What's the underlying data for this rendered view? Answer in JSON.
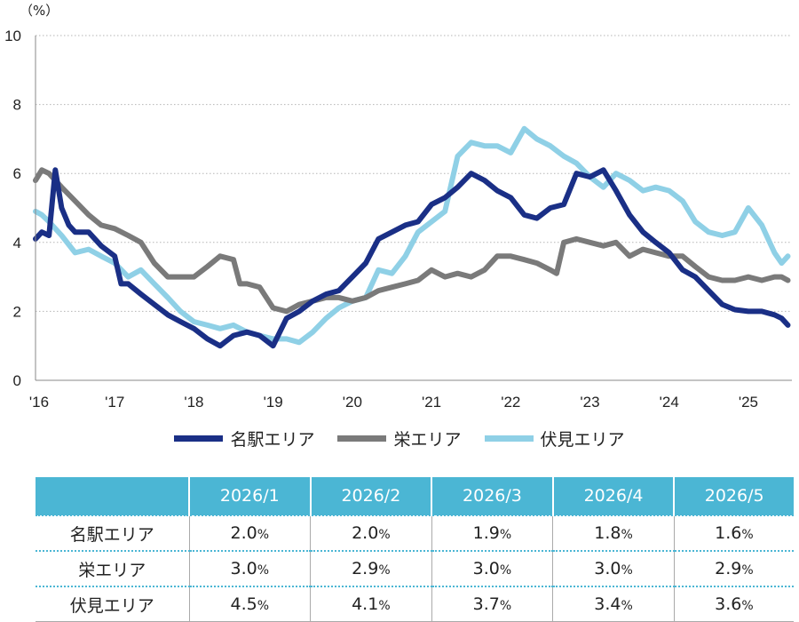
{
  "chart_data": {
    "type": "line",
    "unit_label": "（%）",
    "ylim": [
      0,
      10
    ],
    "yticks": [
      "0",
      "2",
      "4",
      "6",
      "8",
      "10"
    ],
    "xlim": [
      2016.0,
      2025.55
    ],
    "xticks": [
      {
        "label": "'16",
        "x": 2016
      },
      {
        "label": "'17",
        "x": 2017
      },
      {
        "label": "'18",
        "x": 2018
      },
      {
        "label": "'19",
        "x": 2019
      },
      {
        "label": "'20",
        "x": 2020
      },
      {
        "label": "'21",
        "x": 2021
      },
      {
        "label": "'22",
        "x": 2022
      },
      {
        "label": "'23",
        "x": 2023
      },
      {
        "label": "'24",
        "x": 2024
      },
      {
        "label": "'25",
        "x": 2025
      }
    ],
    "grid": "horizontal dotted",
    "legend_position": "bottom",
    "series": [
      {
        "name": "名駅エリア",
        "color": "#1a2f86",
        "points": [
          [
            2016.0,
            4.1
          ],
          [
            2016.08,
            4.3
          ],
          [
            2016.17,
            4.2
          ],
          [
            2016.25,
            6.1
          ],
          [
            2016.33,
            5.0
          ],
          [
            2016.42,
            4.5
          ],
          [
            2016.5,
            4.3
          ],
          [
            2016.67,
            4.3
          ],
          [
            2016.83,
            3.9
          ],
          [
            2017.0,
            3.6
          ],
          [
            2017.08,
            2.8
          ],
          [
            2017.17,
            2.8
          ],
          [
            2017.33,
            2.5
          ],
          [
            2017.5,
            2.2
          ],
          [
            2017.67,
            1.9
          ],
          [
            2017.83,
            1.7
          ],
          [
            2018.0,
            1.5
          ],
          [
            2018.17,
            1.2
          ],
          [
            2018.33,
            1.0
          ],
          [
            2018.5,
            1.3
          ],
          [
            2018.67,
            1.4
          ],
          [
            2018.83,
            1.3
          ],
          [
            2019.0,
            1.0
          ],
          [
            2019.17,
            1.8
          ],
          [
            2019.33,
            2.0
          ],
          [
            2019.5,
            2.3
          ],
          [
            2019.67,
            2.5
          ],
          [
            2019.83,
            2.6
          ],
          [
            2020.0,
            3.0
          ],
          [
            2020.17,
            3.4
          ],
          [
            2020.33,
            4.1
          ],
          [
            2020.5,
            4.3
          ],
          [
            2020.67,
            4.5
          ],
          [
            2020.83,
            4.6
          ],
          [
            2021.0,
            5.1
          ],
          [
            2021.17,
            5.3
          ],
          [
            2021.33,
            5.6
          ],
          [
            2021.5,
            6.0
          ],
          [
            2021.67,
            5.8
          ],
          [
            2021.83,
            5.5
          ],
          [
            2022.0,
            5.3
          ],
          [
            2022.17,
            4.8
          ],
          [
            2022.33,
            4.7
          ],
          [
            2022.5,
            5.0
          ],
          [
            2022.67,
            5.1
          ],
          [
            2022.83,
            6.0
          ],
          [
            2023.0,
            5.9
          ],
          [
            2023.17,
            6.1
          ],
          [
            2023.33,
            5.5
          ],
          [
            2023.5,
            4.8
          ],
          [
            2023.67,
            4.3
          ],
          [
            2023.83,
            4.0
          ],
          [
            2024.0,
            3.7
          ],
          [
            2024.17,
            3.2
          ],
          [
            2024.33,
            3.0
          ],
          [
            2024.5,
            2.6
          ],
          [
            2024.67,
            2.2
          ],
          [
            2024.83,
            2.05
          ],
          [
            2025.0,
            2.0
          ],
          [
            2025.17,
            2.0
          ],
          [
            2025.33,
            1.9
          ],
          [
            2025.42,
            1.8
          ],
          [
            2025.5,
            1.6
          ]
        ]
      },
      {
        "name": "栄エリア",
        "color": "#7a7a7a",
        "points": [
          [
            2016.0,
            5.8
          ],
          [
            2016.08,
            6.1
          ],
          [
            2016.17,
            6.0
          ],
          [
            2016.33,
            5.6
          ],
          [
            2016.5,
            5.2
          ],
          [
            2016.67,
            4.8
          ],
          [
            2016.83,
            4.5
          ],
          [
            2017.0,
            4.4
          ],
          [
            2017.17,
            4.2
          ],
          [
            2017.33,
            4.0
          ],
          [
            2017.5,
            3.4
          ],
          [
            2017.67,
            3.0
          ],
          [
            2017.83,
            3.0
          ],
          [
            2018.0,
            3.0
          ],
          [
            2018.17,
            3.3
          ],
          [
            2018.33,
            3.6
          ],
          [
            2018.5,
            3.5
          ],
          [
            2018.58,
            2.8
          ],
          [
            2018.67,
            2.8
          ],
          [
            2018.83,
            2.7
          ],
          [
            2019.0,
            2.1
          ],
          [
            2019.17,
            2.0
          ],
          [
            2019.33,
            2.2
          ],
          [
            2019.5,
            2.3
          ],
          [
            2019.67,
            2.4
          ],
          [
            2019.83,
            2.4
          ],
          [
            2020.0,
            2.3
          ],
          [
            2020.17,
            2.4
          ],
          [
            2020.33,
            2.6
          ],
          [
            2020.5,
            2.7
          ],
          [
            2020.67,
            2.8
          ],
          [
            2020.83,
            2.9
          ],
          [
            2021.0,
            3.2
          ],
          [
            2021.17,
            3.0
          ],
          [
            2021.33,
            3.1
          ],
          [
            2021.5,
            3.0
          ],
          [
            2021.67,
            3.2
          ],
          [
            2021.83,
            3.6
          ],
          [
            2022.0,
            3.6
          ],
          [
            2022.17,
            3.5
          ],
          [
            2022.33,
            3.4
          ],
          [
            2022.5,
            3.2
          ],
          [
            2022.58,
            3.1
          ],
          [
            2022.67,
            4.0
          ],
          [
            2022.83,
            4.1
          ],
          [
            2023.0,
            4.0
          ],
          [
            2023.17,
            3.9
          ],
          [
            2023.33,
            4.0
          ],
          [
            2023.5,
            3.6
          ],
          [
            2023.67,
            3.8
          ],
          [
            2023.83,
            3.7
          ],
          [
            2024.0,
            3.6
          ],
          [
            2024.17,
            3.6
          ],
          [
            2024.33,
            3.3
          ],
          [
            2024.5,
            3.0
          ],
          [
            2024.67,
            2.9
          ],
          [
            2024.83,
            2.9
          ],
          [
            2025.0,
            3.0
          ],
          [
            2025.17,
            2.9
          ],
          [
            2025.33,
            3.0
          ],
          [
            2025.42,
            3.0
          ],
          [
            2025.5,
            2.9
          ]
        ]
      },
      {
        "name": "伏見エリア",
        "color": "#8fd0e6",
        "points": [
          [
            2016.0,
            4.9
          ],
          [
            2016.08,
            4.8
          ],
          [
            2016.17,
            4.6
          ],
          [
            2016.33,
            4.2
          ],
          [
            2016.5,
            3.7
          ],
          [
            2016.67,
            3.8
          ],
          [
            2016.83,
            3.6
          ],
          [
            2017.0,
            3.4
          ],
          [
            2017.17,
            3.0
          ],
          [
            2017.33,
            3.2
          ],
          [
            2017.5,
            2.8
          ],
          [
            2017.67,
            2.4
          ],
          [
            2017.83,
            2.0
          ],
          [
            2018.0,
            1.7
          ],
          [
            2018.17,
            1.6
          ],
          [
            2018.33,
            1.5
          ],
          [
            2018.5,
            1.6
          ],
          [
            2018.67,
            1.4
          ],
          [
            2018.83,
            1.3
          ],
          [
            2019.0,
            1.2
          ],
          [
            2019.17,
            1.2
          ],
          [
            2019.33,
            1.1
          ],
          [
            2019.5,
            1.4
          ],
          [
            2019.67,
            1.8
          ],
          [
            2019.83,
            2.1
          ],
          [
            2020.0,
            2.3
          ],
          [
            2020.17,
            2.4
          ],
          [
            2020.33,
            3.2
          ],
          [
            2020.5,
            3.1
          ],
          [
            2020.67,
            3.6
          ],
          [
            2020.83,
            4.3
          ],
          [
            2021.0,
            4.6
          ],
          [
            2021.17,
            4.9
          ],
          [
            2021.33,
            6.5
          ],
          [
            2021.5,
            6.9
          ],
          [
            2021.67,
            6.8
          ],
          [
            2021.83,
            6.8
          ],
          [
            2022.0,
            6.6
          ],
          [
            2022.17,
            7.3
          ],
          [
            2022.33,
            7.0
          ],
          [
            2022.5,
            6.8
          ],
          [
            2022.67,
            6.5
          ],
          [
            2022.83,
            6.3
          ],
          [
            2023.0,
            5.9
          ],
          [
            2023.17,
            5.6
          ],
          [
            2023.33,
            6.0
          ],
          [
            2023.5,
            5.8
          ],
          [
            2023.67,
            5.5
          ],
          [
            2023.83,
            5.6
          ],
          [
            2024.0,
            5.5
          ],
          [
            2024.17,
            5.2
          ],
          [
            2024.33,
            4.6
          ],
          [
            2024.5,
            4.3
          ],
          [
            2024.67,
            4.2
          ],
          [
            2024.83,
            4.3
          ],
          [
            2025.0,
            5.0
          ],
          [
            2025.17,
            4.5
          ],
          [
            2025.25,
            4.1
          ],
          [
            2025.33,
            3.7
          ],
          [
            2025.42,
            3.4
          ],
          [
            2025.5,
            3.6
          ]
        ]
      }
    ]
  },
  "table": {
    "columns": [
      "2026/1",
      "2026/2",
      "2026/3",
      "2026/4",
      "2026/5"
    ],
    "pct_symbol": "%",
    "rows": [
      {
        "label": "名駅エリア",
        "values": [
          "2.0",
          "2.0",
          "1.9",
          "1.8",
          "1.6"
        ]
      },
      {
        "label": "栄エリア",
        "values": [
          "3.0",
          "2.9",
          "3.0",
          "3.0",
          "2.9"
        ]
      },
      {
        "label": "伏見エリア",
        "values": [
          "4.5",
          "4.1",
          "3.7",
          "3.4",
          "3.6"
        ]
      }
    ]
  }
}
